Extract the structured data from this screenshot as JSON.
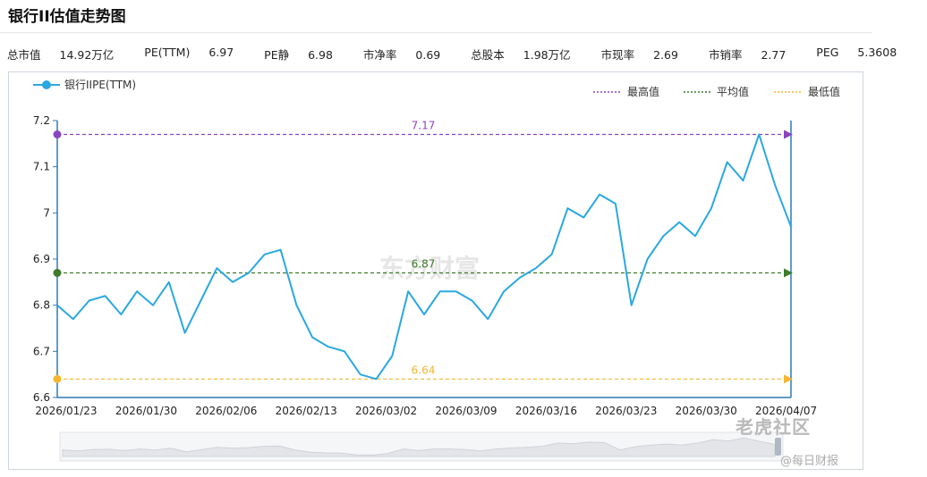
{
  "title": "银行II估值走势图",
  "stats": [
    {
      "label": "总市值",
      "value": "14.92万亿"
    },
    {
      "label": "PE(TTM)",
      "value": "6.97"
    },
    {
      "label": "PE静",
      "value": "6.98"
    },
    {
      "label": "市净率",
      "value": "0.69"
    },
    {
      "label": "总股本",
      "value": "1.98万亿"
    },
    {
      "label": "市现率",
      "value": "2.69"
    },
    {
      "label": "市销率",
      "value": "2.77"
    },
    {
      "label": "PEG",
      "value": "5.3608"
    }
  ],
  "watermark_center": "东方财富",
  "watermark_br1": "老虎社区",
  "watermark_br2": "@每日财报",
  "colors": {
    "line": "#2aa8e0",
    "max": "#8b44c0",
    "avg": "#3d7a2a",
    "min": "#f5b731",
    "axis": "#2c7bb6"
  },
  "chart_data": {
    "type": "line",
    "title": "",
    "legend": {
      "series": "银行IIPE(TTM)",
      "max": "最高值",
      "avg": "平均值",
      "min": "最低值"
    },
    "ylim": [
      6.6,
      7.2
    ],
    "yticks": [
      "7.2",
      "7.1",
      "7",
      "6.9",
      "6.8",
      "6.7",
      "6.6"
    ],
    "xticks": [
      "2026/01/23",
      "2026/01/30",
      "2026/02/06",
      "2026/02/13",
      "2026/03/02",
      "2026/03/09",
      "2026/03/16",
      "2026/03/23",
      "2026/03/30",
      "2026/04/07"
    ],
    "reference_lines": {
      "max": 7.17,
      "avg": 6.87,
      "min": 6.64
    },
    "reference_labels": {
      "max": "7.17",
      "avg": "6.87",
      "min": "6.64"
    },
    "series": [
      {
        "name": "银行IIPE(TTM)",
        "values": [
          6.8,
          6.77,
          6.81,
          6.82,
          6.78,
          6.83,
          6.8,
          6.85,
          6.74,
          6.81,
          6.88,
          6.85,
          6.87,
          6.91,
          6.92,
          6.8,
          6.73,
          6.71,
          6.7,
          6.65,
          6.64,
          6.69,
          6.83,
          6.78,
          6.83,
          6.83,
          6.81,
          6.77,
          6.83,
          6.86,
          6.88,
          6.91,
          7.01,
          6.99,
          7.04,
          7.02,
          6.8,
          6.9,
          6.95,
          6.98,
          6.95,
          7.01,
          7.11,
          7.07,
          7.17,
          7.06,
          6.97
        ]
      }
    ]
  }
}
